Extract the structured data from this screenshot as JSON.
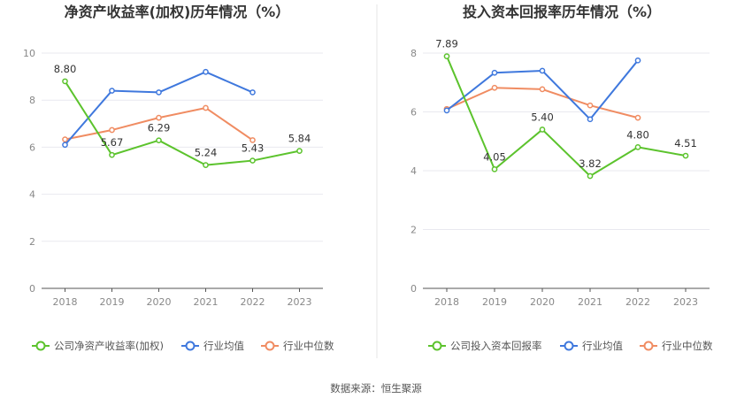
{
  "source": "数据来源：恒生聚源",
  "colors": {
    "company": "#5cc32d",
    "industry_avg": "#3f78dd",
    "industry_median": "#f08c62",
    "grid": "#e9e9ef",
    "axis": "#555555",
    "divider": "#e6e6e6"
  },
  "chart_data": [
    {
      "type": "line",
      "title": "净资产收益率(加权)历年情况（%）",
      "categories": [
        "2018",
        "2019",
        "2020",
        "2021",
        "2022",
        "2023"
      ],
      "ylim": [
        0,
        10
      ],
      "yticks": [
        0,
        2,
        4,
        6,
        8,
        10
      ],
      "grid": true,
      "legend_position": "bottom",
      "series": [
        {
          "name": "公司净资产收益率(加权)",
          "color_key": "company",
          "labeled": true,
          "values": [
            8.8,
            5.67,
            6.29,
            5.24,
            5.43,
            5.84
          ]
        },
        {
          "name": "行业均值",
          "color_key": "industry_avg",
          "labeled": false,
          "values": [
            6.1,
            8.4,
            8.33,
            9.2,
            8.33,
            null
          ]
        },
        {
          "name": "行业中位数",
          "color_key": "industry_median",
          "labeled": false,
          "values": [
            6.33,
            6.73,
            7.25,
            7.67,
            6.3,
            null
          ]
        }
      ],
      "data_labels": [
        "8.80",
        "5.67",
        "6.29",
        "5.24",
        "5.43",
        "5.84"
      ]
    },
    {
      "type": "line",
      "title": "投入资本回报率历年情况（%）",
      "categories": [
        "2018",
        "2019",
        "2020",
        "2021",
        "2022",
        "2023"
      ],
      "ylim": [
        0,
        8
      ],
      "yticks": [
        0,
        2,
        4,
        6,
        8
      ],
      "grid": true,
      "legend_position": "bottom",
      "series": [
        {
          "name": "公司投入资本回报率",
          "color_key": "company",
          "labeled": true,
          "values": [
            7.89,
            4.05,
            5.4,
            3.82,
            4.8,
            4.51
          ]
        },
        {
          "name": "行业均值",
          "color_key": "industry_avg",
          "labeled": false,
          "values": [
            6.05,
            7.33,
            7.4,
            5.75,
            7.75,
            null
          ]
        },
        {
          "name": "行业中位数",
          "color_key": "industry_median",
          "labeled": false,
          "values": [
            6.1,
            6.82,
            6.77,
            6.22,
            5.8,
            null
          ]
        }
      ],
      "data_labels": [
        "7.89",
        "4.05",
        "5.40",
        "3.82",
        "4.80",
        "4.51"
      ]
    }
  ]
}
